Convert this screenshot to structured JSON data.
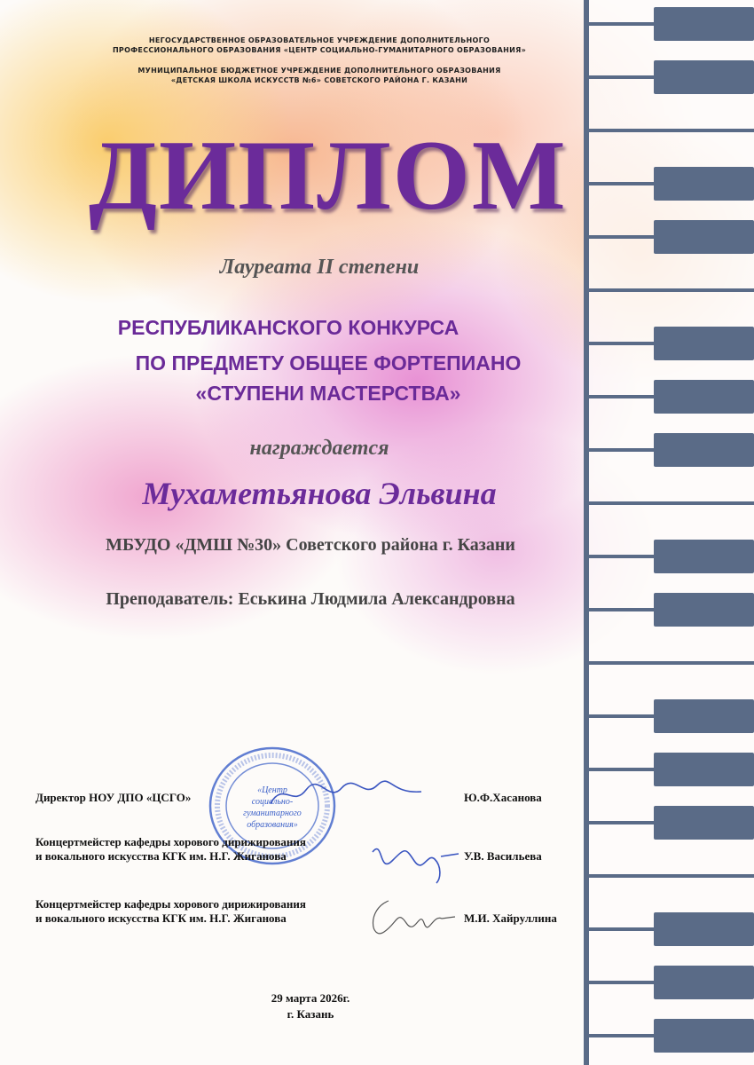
{
  "header": {
    "org1_line1": "НЕГОСУДАРСТВЕННОЕ ОБРАЗОВАТЕЛЬНОЕ УЧРЕЖДЕНИЕ ДОПОЛНИТЕЛЬНОГО",
    "org1_line2": "ПРОФЕССИОНАЛЬНОГО ОБРАЗОВАНИЯ «ЦЕНТР СОЦИАЛЬНО-ГУМАНИТАРНОГО ОБРАЗОВАНИЯ»",
    "org2_line1": "МУНИЦИПАЛЬНОЕ БЮДЖЕТНОЕ УЧРЕЖДЕНИЕ ДОПОЛНИТЕЛЬНОГО ОБРАЗОВАНИЯ",
    "org2_line2": "«ДЕТСКАЯ ШКОЛА ИСКУССТВ №6» СОВЕТСКОГО РАЙОНА Г. КАЗАНИ"
  },
  "title": "ДИПЛОМ",
  "degree": "Лауреата II степени",
  "contest": [
    "РЕСПУБЛИКАНСКОГО КОНКУРСА",
    "ПО ПРЕДМЕТУ ОБЩЕЕ ФОРТЕПИАНО",
    "«СТУПЕНИ МАСТЕРСТВА»"
  ],
  "awarded": "награждается",
  "recipient": "Мухаметьянова Эльвина",
  "school": "МБУДО «ДМШ №30» Советского района г. Казани",
  "teacher": "Преподаватель: Еськина Людмила Александровна",
  "stamp": {
    "text": "«Центр социально-гуманитарного образования»"
  },
  "signatures": [
    {
      "role": [
        "Директор НОУ ДПО «ЦСГО»"
      ],
      "name": "Ю.Ф.Хасанова"
    },
    {
      "role": [
        "Концертмейстер кафедры хорового дирижирования",
        "и вокального искусства КГК им. Н.Г. Жиганова"
      ],
      "name": "У.В. Васильева"
    },
    {
      "role": [
        "Концертмейстер кафедры хорового дирижирования",
        "и вокального искусства КГК им. Н.Г. Жиганова"
      ],
      "name": "М.И. Хайруллина"
    }
  ],
  "date": "29 марта 2026г.",
  "city": "г. Казань",
  "colors": {
    "title": "#6b2b9a",
    "piano_keys": "#5a6b87"
  }
}
